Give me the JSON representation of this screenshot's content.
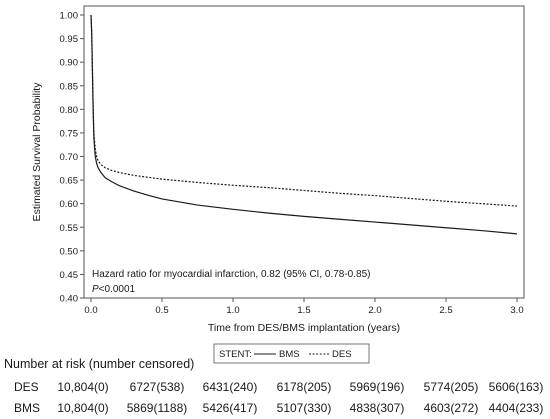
{
  "chart_data": {
    "type": "line",
    "ylabel": "Estimated Survival Probability",
    "xlabel": "Time from DES/BMS implantation (years)",
    "xlim": [
      0,
      3.0
    ],
    "ylim": [
      0.4,
      1.0
    ],
    "x_ticks": [
      "0.0",
      "0.5",
      "1.0",
      "1.5",
      "2.0",
      "2.5",
      "3.0"
    ],
    "y_ticks": [
      "0.40",
      "0.45",
      "0.50",
      "0.55",
      "0.60",
      "0.65",
      "0.70",
      "0.75",
      "0.80",
      "0.85",
      "0.90",
      "0.95",
      "1.00"
    ],
    "legend": {
      "title": "STENT:",
      "placement": "bottom-center"
    },
    "grid": false,
    "annotation": {
      "line1": "Hazard ratio for myocardial infarction, 0.82 (95% CI, 0.78-0.85)",
      "p_label": "P",
      "p_value": "<0.0001"
    },
    "series": [
      {
        "name": "BMS",
        "style": "solid",
        "color": "#1a1a1a",
        "x": [
          0,
          0.005,
          0.01,
          0.015,
          0.02,
          0.03,
          0.04,
          0.05,
          0.07,
          0.1,
          0.15,
          0.2,
          0.3,
          0.4,
          0.5,
          0.75,
          1.0,
          1.25,
          1.5,
          1.75,
          2.0,
          2.25,
          2.5,
          2.75,
          3.0
        ],
        "y": [
          1.0,
          0.96,
          0.88,
          0.8,
          0.74,
          0.7,
          0.685,
          0.676,
          0.666,
          0.655,
          0.646,
          0.638,
          0.627,
          0.618,
          0.61,
          0.597,
          0.588,
          0.58,
          0.573,
          0.567,
          0.561,
          0.555,
          0.549,
          0.543,
          0.536
        ]
      },
      {
        "name": "DES",
        "style": "dashed",
        "color": "#1a1a1a",
        "x": [
          0,
          0.005,
          0.01,
          0.015,
          0.02,
          0.03,
          0.04,
          0.05,
          0.07,
          0.1,
          0.15,
          0.2,
          0.3,
          0.4,
          0.5,
          0.75,
          1.0,
          1.25,
          1.5,
          1.75,
          2.0,
          2.25,
          2.5,
          2.75,
          3.0
        ],
        "y": [
          1.0,
          0.965,
          0.89,
          0.81,
          0.75,
          0.715,
          0.7,
          0.691,
          0.683,
          0.676,
          0.67,
          0.666,
          0.66,
          0.656,
          0.652,
          0.645,
          0.639,
          0.634,
          0.628,
          0.622,
          0.617,
          0.611,
          0.605,
          0.6,
          0.595
        ]
      }
    ]
  },
  "risk_table": {
    "title": "Number at risk (number censored)",
    "rows": [
      {
        "label": "DES",
        "values": [
          "10,804(0)",
          "6727(538)",
          "6431(240)",
          "6178(205)",
          "5969(196)",
          "5774(205)",
          "5606(163)"
        ]
      },
      {
        "label": "BMS",
        "values": [
          "10,804(0)",
          "5869(1188)",
          "5426(417)",
          "5107(330)",
          "4838(307)",
          "4603(272)",
          "4404(233)"
        ]
      }
    ]
  }
}
